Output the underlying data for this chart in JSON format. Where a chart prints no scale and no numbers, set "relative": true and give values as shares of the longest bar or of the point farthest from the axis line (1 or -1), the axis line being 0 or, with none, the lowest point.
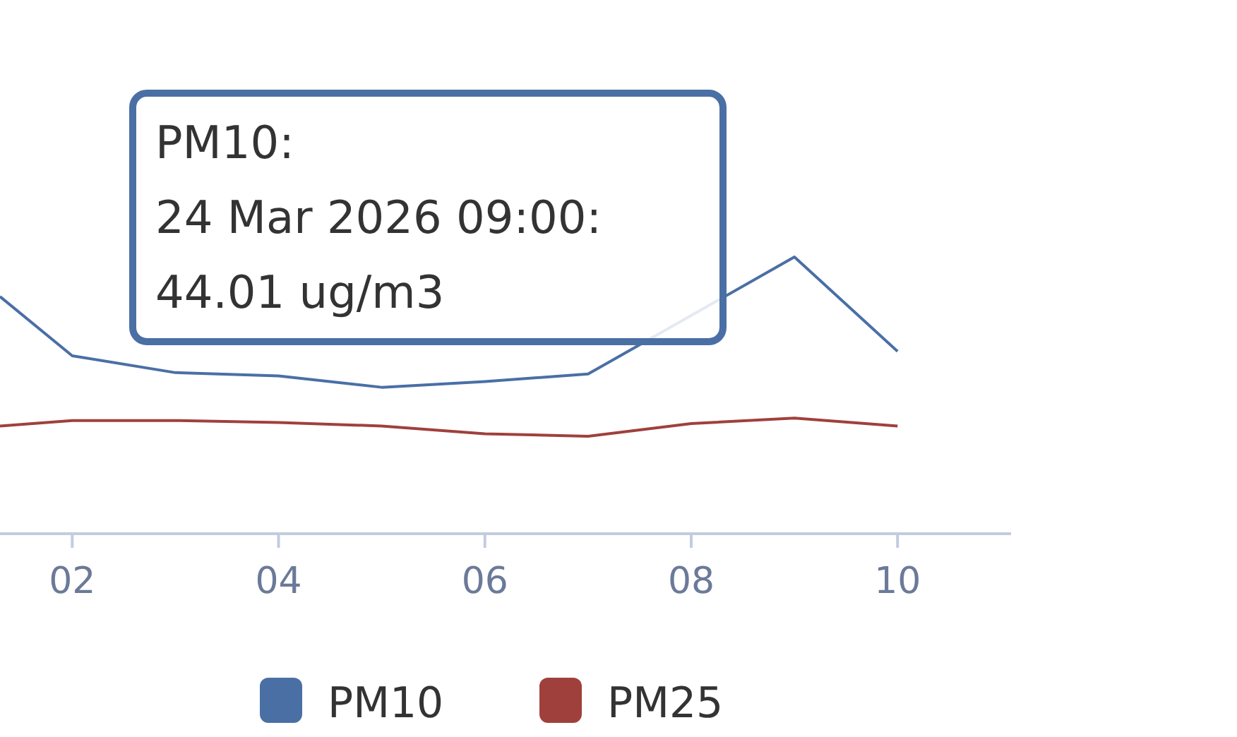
{
  "chart_data": {
    "type": "line",
    "relative": true,
    "x": [
      1.3,
      2,
      3,
      4,
      5,
      6,
      7,
      8,
      9,
      10
    ],
    "series": [
      {
        "name": "PM10",
        "color": "#4a6fa5",
        "x": [
          1.3,
          2,
          3,
          4,
          5,
          6,
          7,
          9,
          10
        ],
        "values": [
          0.857,
          0.643,
          0.582,
          0.57,
          0.529,
          0.55,
          0.577,
          1,
          0.659
        ]
      },
      {
        "name": "PM25",
        "color": "#a0403c",
        "values": [
          0.389,
          0.409,
          0.409,
          0.402,
          0.389,
          0.361,
          0.352,
          0.398,
          0.418,
          0.389
        ]
      }
    ],
    "xlim": [
      1.3,
      11.1
    ],
    "xticks": [
      {
        "value": 2,
        "label": "02"
      },
      {
        "value": 4,
        "label": "04"
      },
      {
        "value": 6,
        "label": "06"
      },
      {
        "value": 8,
        "label": "08"
      },
      {
        "value": 10,
        "label": "10"
      }
    ],
    "tick_labels": "x",
    "legend": "bottom",
    "marker": "none",
    "line_style": "solid",
    "annotations": [
      "PM10:\n24 Mar 2026 09:00:\n44.01 ug/m3"
    ]
  }
}
